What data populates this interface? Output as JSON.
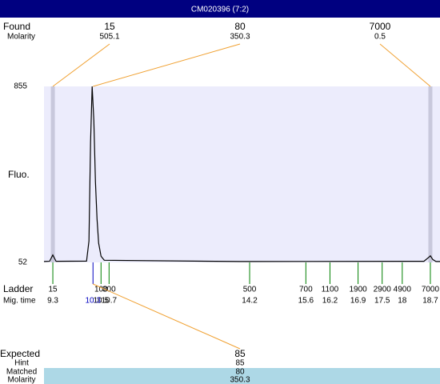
{
  "title": "CM020396 (7:2)",
  "found": {
    "label": "Found",
    "molarity_label": "Molarity",
    "peaks": [
      {
        "size": 15,
        "molarity": 505.1
      },
      {
        "size": 80,
        "molarity": 350.3,
        "mig_time": 10.3
      },
      {
        "size": 7000,
        "molarity": 0.5
      }
    ]
  },
  "chart_data": {
    "type": "line",
    "y_label": "Fluo.",
    "color": "#000000",
    "x": [
      9.08,
      9.22,
      9.3,
      9.38,
      10.14,
      10.2,
      10.24,
      10.28,
      10.32,
      10.36,
      10.4,
      10.44,
      10.5,
      10.58,
      13.96,
      18.54,
      18.66,
      18.7,
      18.76,
      18.84,
      18.94
    ],
    "values": [
      56,
      57,
      86,
      57,
      58,
      150,
      600,
      855,
      700,
      420,
      250,
      140,
      80,
      62,
      56,
      57,
      75,
      82,
      65,
      56,
      56
    ],
    "xlim": [
      9.08,
      18.94
    ],
    "ylim": [
      52,
      855
    ],
    "yticks": [
      52,
      855
    ]
  },
  "ladder": {
    "label": "Ladder",
    "time_label": "Mig. time",
    "sizes": [
      15,
      100,
      300,
      500,
      700,
      1100,
      1900,
      2900,
      4900,
      7000
    ],
    "times": [
      9.3,
      10.5,
      10.7,
      14.2,
      15.6,
      16.2,
      16.9,
      17.5,
      18,
      18.7
    ]
  },
  "expected": {
    "label": "Expected",
    "value": 85,
    "hint_label": "Hint",
    "hint": 85,
    "matched_label": "Matched",
    "matched": 80,
    "molarity_label": "Molarity",
    "molarity": 350.3
  }
}
